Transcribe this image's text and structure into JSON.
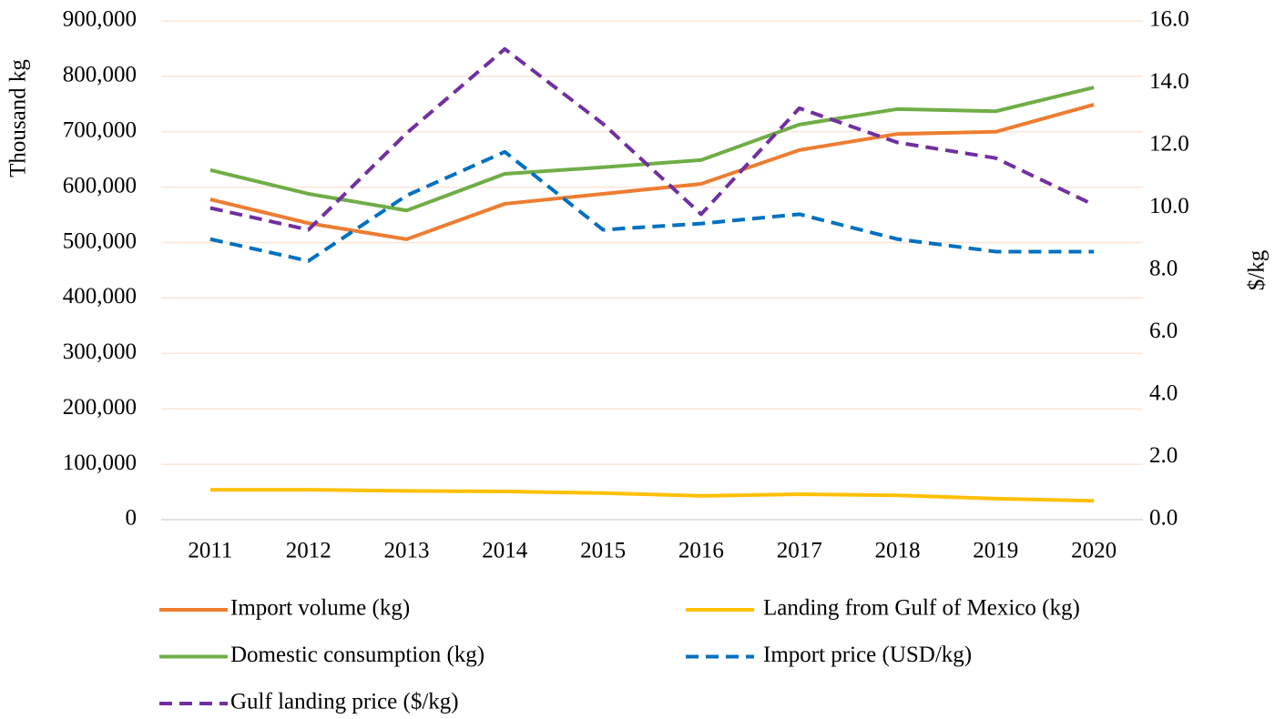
{
  "chart_data": {
    "type": "line",
    "categories": [
      "2011",
      "2012",
      "2013",
      "2014",
      "2015",
      "2016",
      "2017",
      "2018",
      "2019",
      "2020"
    ],
    "y_label": "Thousand kg",
    "y2_label": "$/kg",
    "ylim": [
      0,
      900000
    ],
    "yticks": [
      0,
      {
        "value": 100000,
        "label": "100,000"
      },
      {
        "value": 200000,
        "label": "200,000"
      },
      {
        "value": 300000,
        "label": "300,000"
      },
      {
        "value": 400000,
        "label": "400,000"
      },
      {
        "value": 500000,
        "label": "500,000"
      },
      {
        "value": 600000,
        "label": "600,000"
      },
      {
        "value": 700000,
        "label": "700,000"
      },
      {
        "value": 800000,
        "label": "800,000"
      },
      {
        "value": 900000,
        "label": "900,000"
      }
    ],
    "y2lim": [
      0,
      16
    ],
    "y2ticks": [
      {
        "value": 0,
        "label": "0.0"
      },
      {
        "value": 2,
        "label": "2.0"
      },
      {
        "value": 4,
        "label": "4.0"
      },
      {
        "value": 6,
        "label": "6.0"
      },
      {
        "value": 8,
        "label": "8.0"
      },
      {
        "value": 10,
        "label": "10.0"
      },
      {
        "value": 12,
        "label": "12.0"
      },
      {
        "value": 14,
        "label": "14.0"
      },
      {
        "value": 16,
        "label": "16.0"
      }
    ],
    "grid": true,
    "series": [
      {
        "name": "Import volume (kg)",
        "color": "#ed7d31",
        "dashed": false,
        "values": [
          578000,
          535000,
          506000,
          570000,
          588000,
          606000,
          667000,
          696000,
          700000,
          749000
        ]
      },
      {
        "name": "Landing from Gulf of Mexico (kg)",
        "color": "#ffc000",
        "dashed": false,
        "values": [
          54000,
          54000,
          52000,
          51000,
          48000,
          43000,
          46000,
          44000,
          38000,
          34000
        ]
      },
      {
        "name": "Domestic consumption (kg)",
        "color": "#70ad47",
        "dashed": false,
        "values": [
          631000,
          588000,
          558000,
          624000,
          636000,
          649000,
          713000,
          741000,
          737000,
          780000
        ]
      },
      {
        "name": "Import price (USD/kg)",
        "color": "#0070c0",
        "dashed": true,
        "axis": "y2",
        "values": [
          9.0,
          8.3,
          10.4,
          11.8,
          9.3,
          9.5,
          9.8,
          9.0,
          8.6,
          8.6
        ]
      },
      {
        "name": "Gulf landing price ($/kg)",
        "color": "#7030a0",
        "dashed": true,
        "axis": "y2",
        "values": [
          10.0,
          9.3,
          12.4,
          15.1,
          12.7,
          9.8,
          13.2,
          12.1,
          11.6,
          10.1
        ]
      }
    ]
  }
}
